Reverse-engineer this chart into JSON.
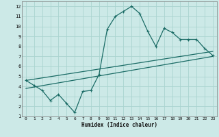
{
  "xlabel": "Humidex (Indice chaleur)",
  "bg_color": "#cce9e7",
  "grid_color": "#aad4d0",
  "line_color": "#1a6b65",
  "xlim": [
    -0.5,
    23.5
  ],
  "ylim": [
    1,
    12.5
  ],
  "xticks": [
    0,
    1,
    2,
    3,
    4,
    5,
    6,
    7,
    8,
    9,
    10,
    11,
    12,
    13,
    14,
    15,
    16,
    17,
    18,
    19,
    20,
    21,
    22,
    23
  ],
  "yticks": [
    1,
    2,
    3,
    4,
    5,
    6,
    7,
    8,
    9,
    10,
    11,
    12
  ],
  "line1_x": [
    0,
    1,
    2,
    3,
    4,
    5,
    6,
    7,
    8,
    9,
    10,
    11,
    12,
    13,
    14,
    15,
    16,
    17,
    18,
    19,
    20,
    21,
    22,
    23
  ],
  "line1_y": [
    4.6,
    4.1,
    3.6,
    2.6,
    3.2,
    2.3,
    1.4,
    3.5,
    3.6,
    5.2,
    9.7,
    11.0,
    11.5,
    12.0,
    11.3,
    9.5,
    8.0,
    9.8,
    9.4,
    8.7,
    8.7,
    8.7,
    7.8,
    7.1
  ],
  "line2_x": [
    0,
    23
  ],
  "line2_y": [
    3.8,
    7.0
  ],
  "line3_x": [
    0,
    23
  ],
  "line3_y": [
    4.6,
    7.5
  ],
  "lw": 0.9,
  "ms": 3.0
}
